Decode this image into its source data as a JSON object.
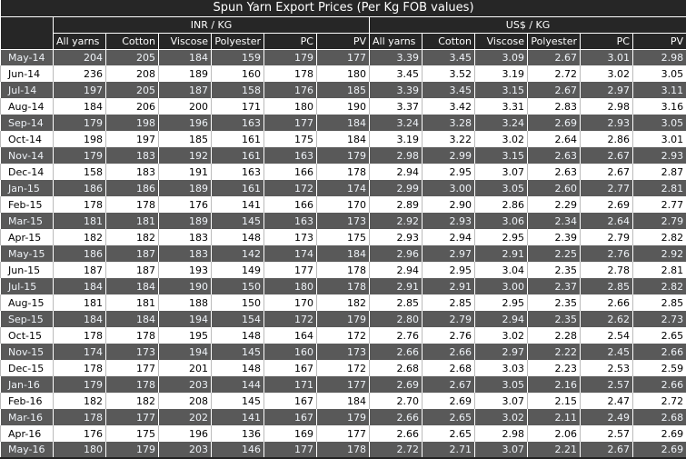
{
  "title": "Spun Yarn Export Prices (Per Kg FOB values)",
  "groups": {
    "inr": "INR / KG",
    "usd": "US$ / KG"
  },
  "columns": [
    "All yarns",
    "Cotton",
    "Viscose",
    "Polyester",
    "PC",
    "PV"
  ],
  "colors": {
    "header_bg": "#262626",
    "dark_row": "#595959",
    "light_row": "#ffffff"
  },
  "rows": [
    {
      "month": "May-14",
      "inr": [
        204,
        205,
        184,
        159,
        179,
        177
      ],
      "usd": [
        "3.39",
        "3.45",
        "3.09",
        "2.67",
        "3.01",
        "2.98"
      ]
    },
    {
      "month": "Jun-14",
      "inr": [
        236,
        208,
        189,
        160,
        178,
        180
      ],
      "usd": [
        "3.45",
        "3.52",
        "3.19",
        "2.72",
        "3.02",
        "3.05"
      ]
    },
    {
      "month": "Jul-14",
      "inr": [
        197,
        205,
        187,
        158,
        176,
        185
      ],
      "usd": [
        "3.39",
        "3.45",
        "3.15",
        "2.67",
        "2.97",
        "3.11"
      ]
    },
    {
      "month": "Aug-14",
      "inr": [
        184,
        206,
        200,
        171,
        180,
        190
      ],
      "usd": [
        "3.37",
        "3.42",
        "3.31",
        "2.83",
        "2.98",
        "3.16"
      ]
    },
    {
      "month": "Sep-14",
      "inr": [
        179,
        198,
        196,
        163,
        177,
        184
      ],
      "usd": [
        "3.24",
        "3.28",
        "3.24",
        "2.69",
        "2.93",
        "3.05"
      ]
    },
    {
      "month": "Oct-14",
      "inr": [
        198,
        197,
        185,
        161,
        175,
        184
      ],
      "usd": [
        "3.19",
        "3.22",
        "3.02",
        "2.64",
        "2.86",
        "3.01"
      ]
    },
    {
      "month": "Nov-14",
      "inr": [
        179,
        183,
        192,
        161,
        163,
        179
      ],
      "usd": [
        "2.98",
        "2.99",
        "3.15",
        "2.63",
        "2.67",
        "2.93"
      ]
    },
    {
      "month": "Dec-14",
      "inr": [
        158,
        183,
        191,
        163,
        166,
        178
      ],
      "usd": [
        "2.94",
        "2.95",
        "3.07",
        "2.63",
        "2.67",
        "2.87"
      ]
    },
    {
      "month": "Jan-15",
      "inr": [
        186,
        186,
        189,
        161,
        172,
        174
      ],
      "usd": [
        "2.99",
        "3.00",
        "3.05",
        "2.60",
        "2.77",
        "2.81"
      ]
    },
    {
      "month": "Feb-15",
      "inr": [
        178,
        178,
        176,
        141,
        166,
        170
      ],
      "usd": [
        "2.89",
        "2.90",
        "2.86",
        "2.29",
        "2.69",
        "2.77"
      ]
    },
    {
      "month": "Mar-15",
      "inr": [
        181,
        181,
        189,
        145,
        163,
        173
      ],
      "usd": [
        "2.92",
        "2.93",
        "3.06",
        "2.34",
        "2.64",
        "2.79"
      ]
    },
    {
      "month": "Apr-15",
      "inr": [
        182,
        182,
        183,
        148,
        173,
        175
      ],
      "usd": [
        "2.93",
        "2.94",
        "2.95",
        "2.39",
        "2.79",
        "2.82"
      ]
    },
    {
      "month": "May-15",
      "inr": [
        186,
        187,
        183,
        142,
        174,
        184
      ],
      "usd": [
        "2.96",
        "2.97",
        "2.91",
        "2.25",
        "2.76",
        "2.92"
      ]
    },
    {
      "month": "Jun-15",
      "inr": [
        187,
        187,
        193,
        149,
        177,
        178
      ],
      "usd": [
        "2.94",
        "2.95",
        "3.04",
        "2.35",
        "2.78",
        "2.81"
      ]
    },
    {
      "month": "Jul-15",
      "inr": [
        184,
        184,
        190,
        150,
        180,
        178
      ],
      "usd": [
        "2.91",
        "2.91",
        "3.00",
        "2.37",
        "2.85",
        "2.82"
      ]
    },
    {
      "month": "Aug-15",
      "inr": [
        181,
        181,
        188,
        150,
        170,
        182
      ],
      "usd": [
        "2.85",
        "2.85",
        "2.95",
        "2.35",
        "2.66",
        "2.85"
      ]
    },
    {
      "month": "Sep-15",
      "inr": [
        184,
        184,
        194,
        154,
        172,
        179
      ],
      "usd": [
        "2.80",
        "2.79",
        "2.94",
        "2.35",
        "2.62",
        "2.73"
      ]
    },
    {
      "month": "Oct-15",
      "inr": [
        178,
        178,
        195,
        148,
        164,
        172
      ],
      "usd": [
        "2.76",
        "2.76",
        "3.02",
        "2.28",
        "2.54",
        "2.65"
      ]
    },
    {
      "month": "Nov-15",
      "inr": [
        174,
        173,
        194,
        145,
        160,
        173
      ],
      "usd": [
        "2.66",
        "2.66",
        "2.97",
        "2.22",
        "2.45",
        "2.66"
      ]
    },
    {
      "month": "Dec-15",
      "inr": [
        178,
        177,
        201,
        148,
        167,
        172
      ],
      "usd": [
        "2.68",
        "2.68",
        "3.03",
        "2.23",
        "2.53",
        "2.59"
      ]
    },
    {
      "month": "Jan-16",
      "inr": [
        179,
        178,
        203,
        144,
        171,
        177
      ],
      "usd": [
        "2.69",
        "2.67",
        "3.05",
        "2.16",
        "2.57",
        "2.66"
      ]
    },
    {
      "month": "Feb-16",
      "inr": [
        182,
        182,
        208,
        145,
        167,
        184
      ],
      "usd": [
        "2.70",
        "2.69",
        "3.07",
        "2.15",
        "2.47",
        "2.72"
      ]
    },
    {
      "month": "Mar-16",
      "inr": [
        178,
        177,
        202,
        141,
        167,
        179
      ],
      "usd": [
        "2.66",
        "2.65",
        "3.02",
        "2.11",
        "2.49",
        "2.68"
      ]
    },
    {
      "month": "Apr-16",
      "inr": [
        176,
        175,
        196,
        136,
        169,
        177
      ],
      "usd": [
        "2.66",
        "2.65",
        "2.98",
        "2.06",
        "2.57",
        "2.69"
      ]
    },
    {
      "month": "May-16",
      "inr": [
        180,
        179,
        203,
        146,
        177,
        178
      ],
      "usd": [
        "2.72",
        "2.71",
        "3.07",
        "2.21",
        "2.67",
        "2.69"
      ]
    }
  ]
}
